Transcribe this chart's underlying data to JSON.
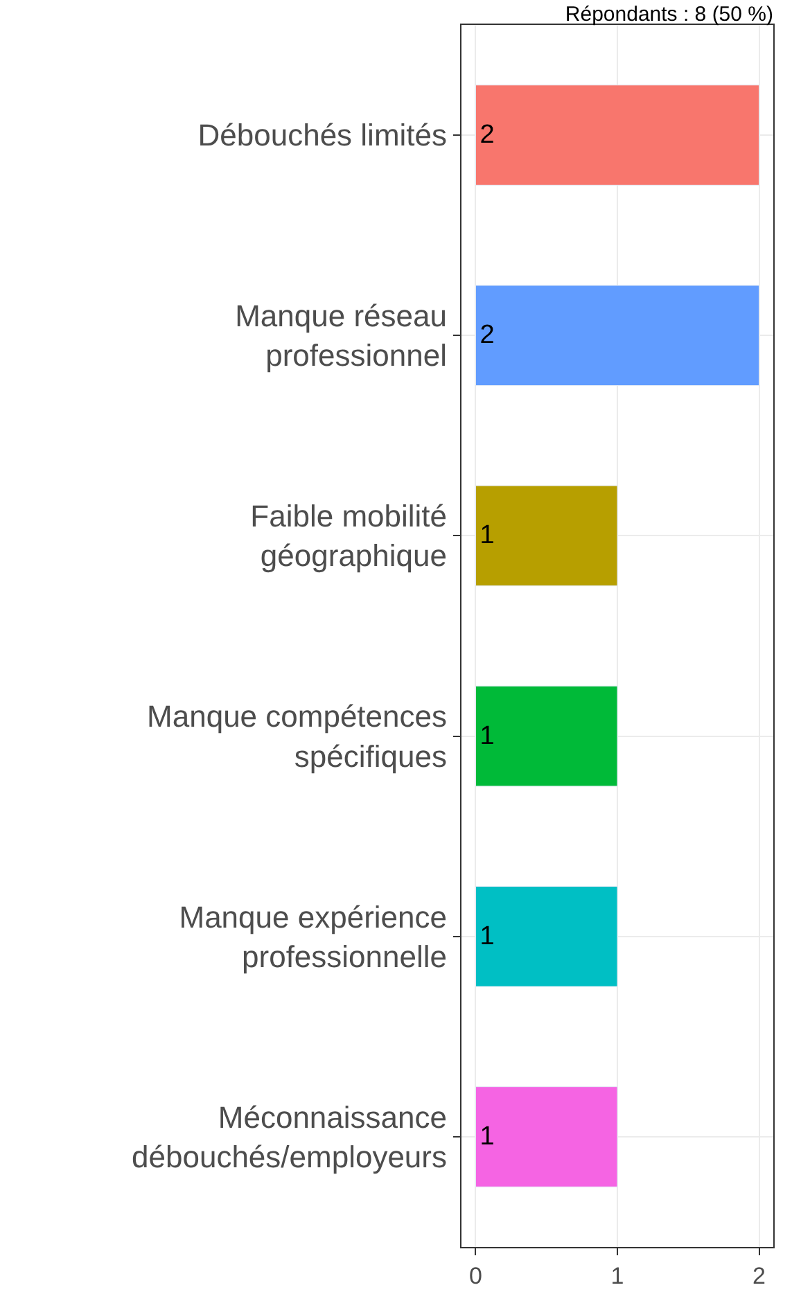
{
  "chart_data": {
    "type": "bar",
    "orientation": "horizontal",
    "title": "Répondants : 8 (50 %)",
    "categories": [
      "Débouchés limités",
      "Manque réseau\nprofessionnel",
      "Faible mobilité\ngéographique",
      "Manque compétences\nspécifiques",
      "Manque expérience\nprofessionnelle",
      "Méconnaissance\ndébouchés/employeurs"
    ],
    "values": [
      2,
      2,
      1,
      1,
      1,
      1
    ],
    "colors": [
      "#f8766d",
      "#619cff",
      "#b79f00",
      "#00ba38",
      "#00bfc4",
      "#f564e3"
    ],
    "xlim": [
      -0.1,
      2.1
    ],
    "xticks": [
      0,
      1,
      2
    ],
    "grid": true,
    "data_labels": true
  }
}
